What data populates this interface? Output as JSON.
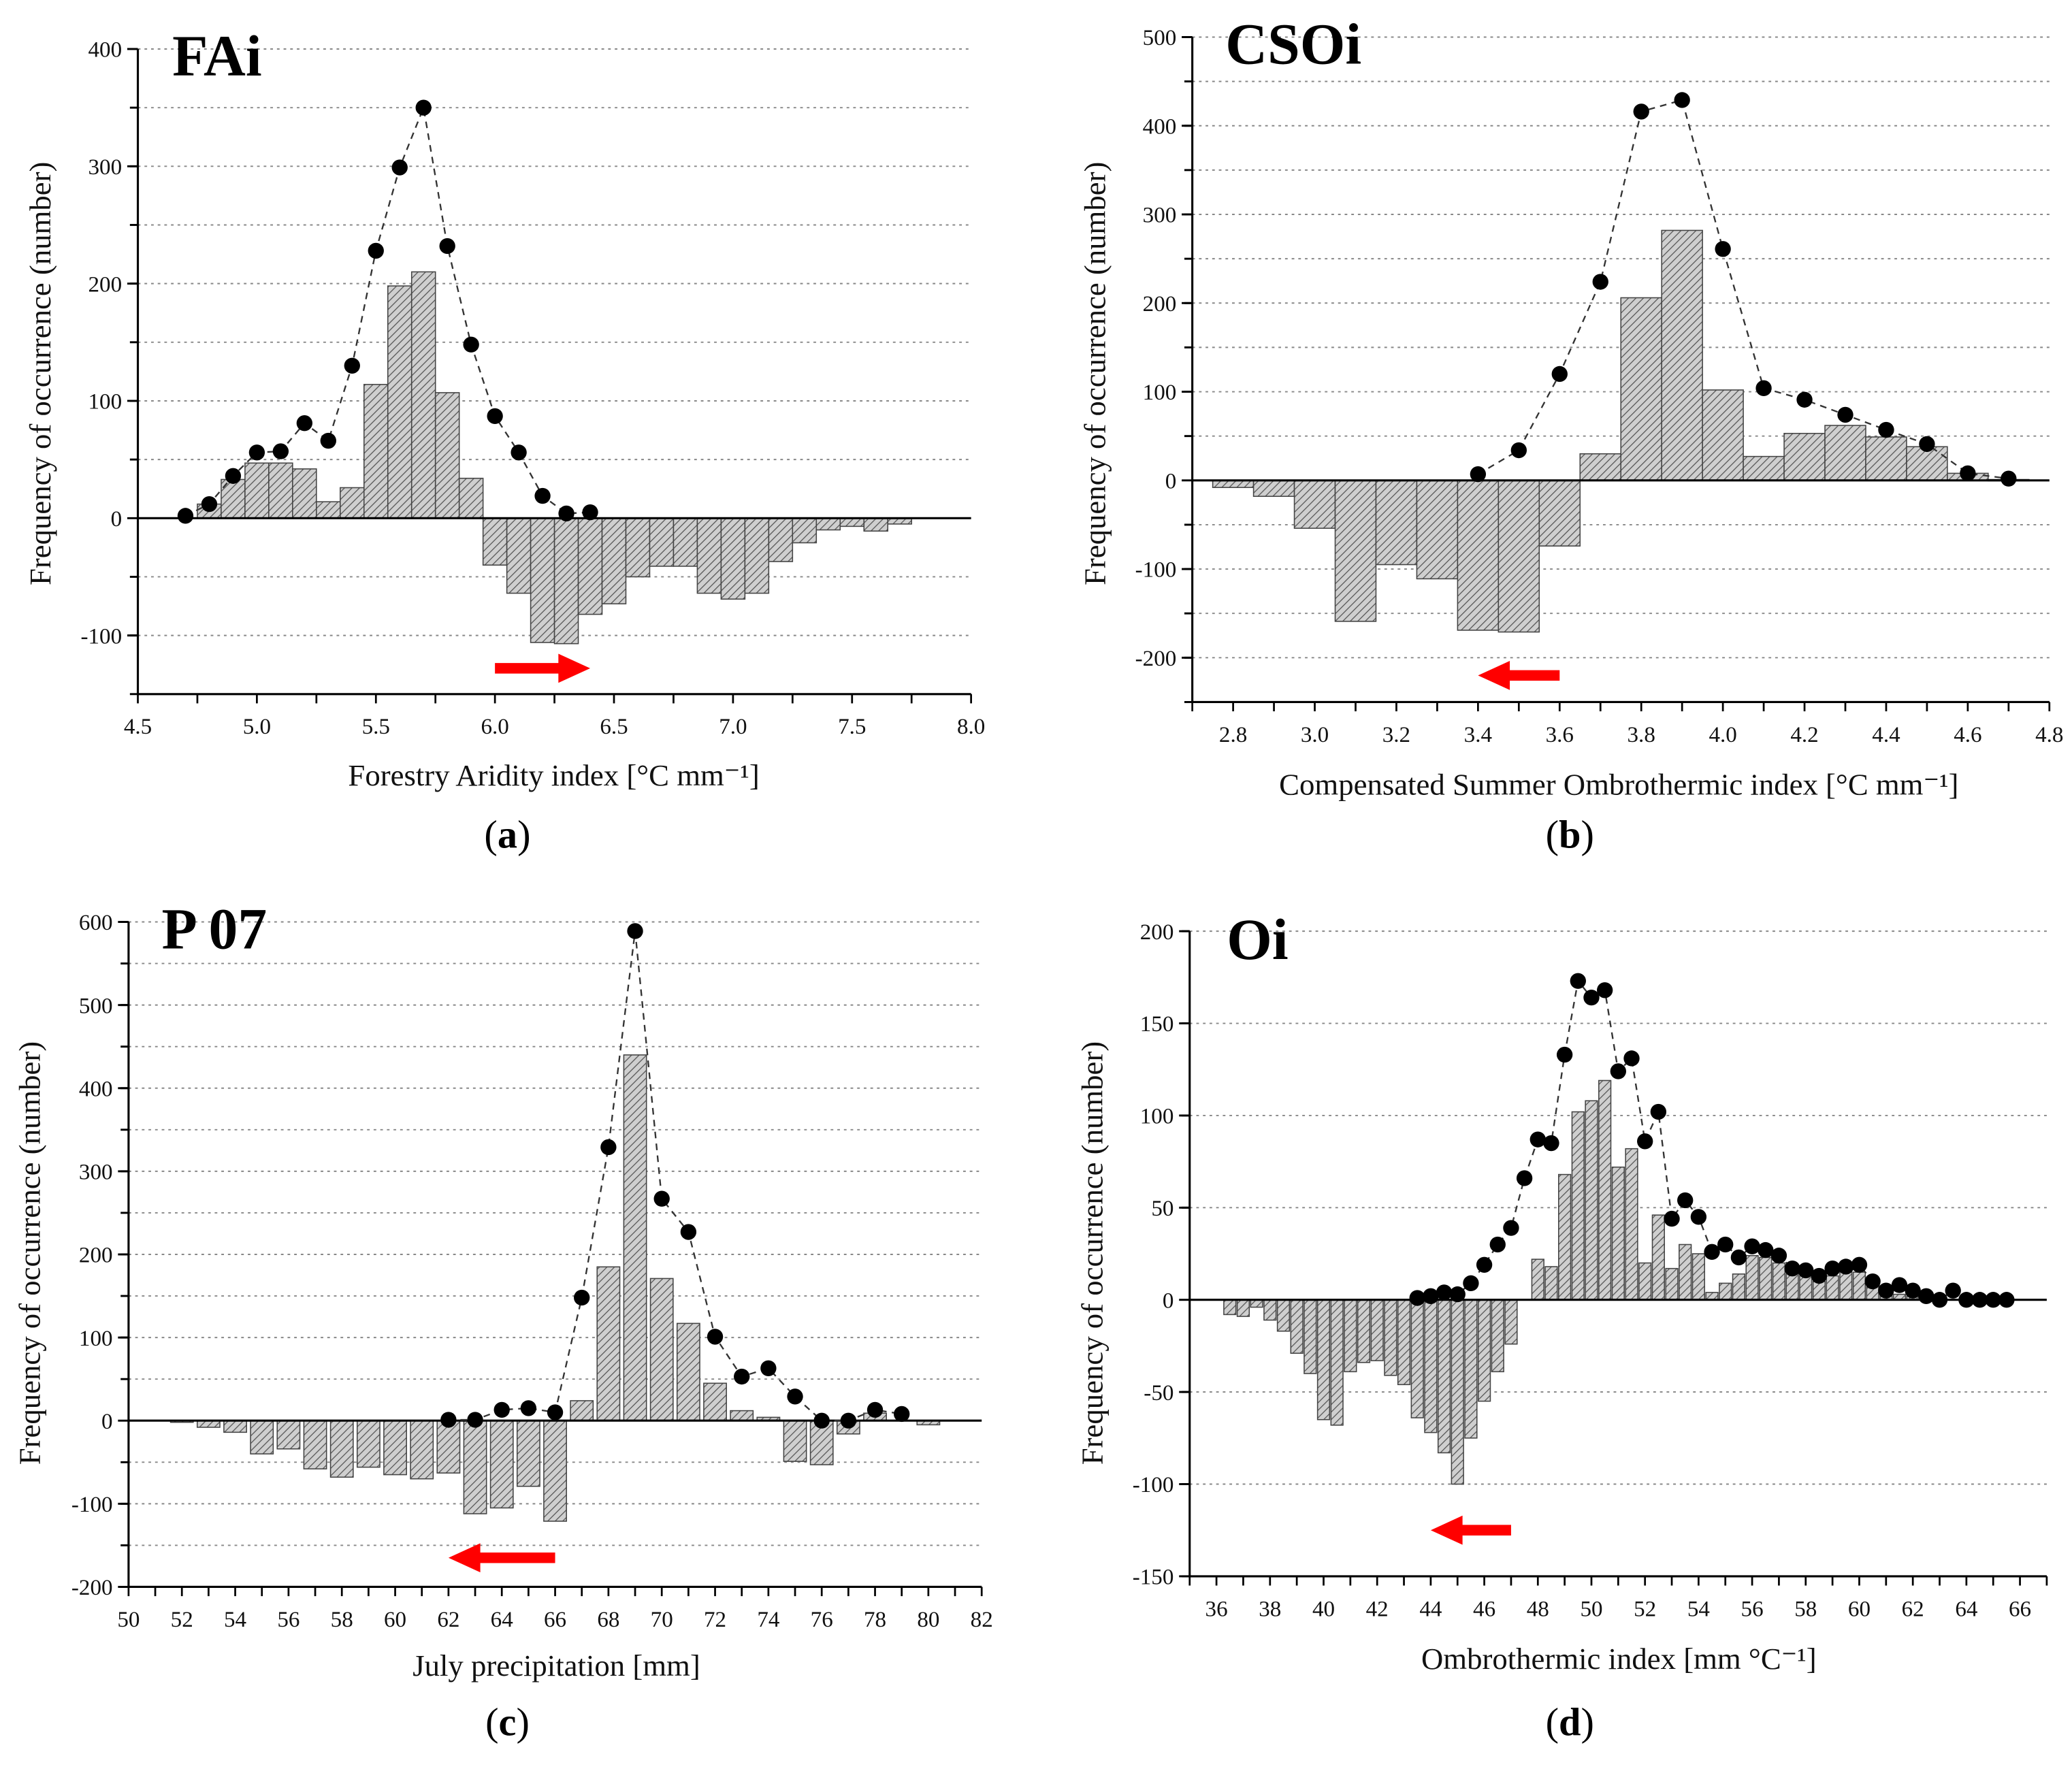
{
  "chart_data": [
    {
      "type": "bar",
      "title": "FAi",
      "panel": "a",
      "xlabel": "Forestry Aridity index [°C mm⁻¹]",
      "ylabel": "Frequency of occurrence (number)",
      "xlim": [
        4.5,
        8.0
      ],
      "ylim": [
        -150,
        400
      ],
      "xticks": [
        "4.5",
        "5.0",
        "5.5",
        "6.0",
        "6.5",
        "7.0",
        "7.5",
        "8.0"
      ],
      "yticks": [
        "-100",
        "0",
        "100",
        "200",
        "300",
        "400"
      ],
      "grid": true,
      "bar_width": 0.1,
      "bars": {
        "x": [
          4.8,
          4.9,
          5.0,
          5.1,
          5.2,
          5.3,
          5.4,
          5.5,
          5.6,
          5.7,
          5.8,
          5.9,
          6.0,
          6.1,
          6.2,
          6.3,
          6.4,
          6.5,
          6.6,
          6.7,
          6.8,
          6.9,
          7.0,
          7.1,
          7.2,
          7.3,
          7.4,
          7.5,
          7.6,
          7.7
        ],
        "values": [
          12,
          33,
          47,
          47,
          42,
          14,
          26,
          114,
          198,
          210,
          107,
          34,
          -40,
          -64,
          -106,
          -107,
          -82,
          -73,
          -50,
          -41,
          -41,
          -64,
          -69,
          -64,
          -37,
          -21,
          -10,
          -7,
          -11,
          -5
        ]
      },
      "points": {
        "x": [
          4.7,
          4.8,
          4.9,
          5.0,
          5.1,
          5.2,
          5.3,
          5.4,
          5.5,
          5.6,
          5.7,
          5.8,
          5.9,
          6.0,
          6.1,
          6.2,
          6.3,
          6.4
        ],
        "values": [
          2,
          12,
          36,
          56,
          57,
          81,
          66,
          130,
          228,
          299,
          350,
          232,
          148,
          87,
          56,
          19,
          4,
          5
        ]
      },
      "arrow": {
        "from": 6.0,
        "to": 6.4,
        "y": -128,
        "direction": "right",
        "color": "#ff0000"
      }
    },
    {
      "type": "bar",
      "title": "CSOi",
      "panel": "b",
      "xlabel": "Compensated Summer Ombrothermic index [°C mm⁻¹]",
      "ylabel": "Frequency of occurrence (number)",
      "xlim": [
        2.7,
        4.8
      ],
      "ylim": [
        -250,
        500
      ],
      "xticks": [
        "2.8",
        "3.0",
        "3.2",
        "3.4",
        "3.6",
        "3.8",
        "4.0",
        "4.2",
        "4.4",
        "4.6",
        "4.8"
      ],
      "yticks": [
        "-200",
        "-100",
        "0",
        "100",
        "200",
        "300",
        "400",
        "500"
      ],
      "grid": true,
      "bar_width": 0.1,
      "bars": {
        "x": [
          2.8,
          2.9,
          3.0,
          3.1,
          3.2,
          3.3,
          3.4,
          3.5,
          3.6,
          3.7,
          3.8,
          3.9,
          4.0,
          4.1,
          4.2,
          4.3,
          4.4,
          4.5,
          4.6,
          4.7
        ],
        "values": [
          -8,
          -18,
          -54,
          -159,
          -95,
          -111,
          -169,
          -171,
          -74,
          30,
          206,
          282,
          102,
          27,
          53,
          62,
          49,
          38,
          8,
          1
        ]
      },
      "points": {
        "x": [
          3.4,
          3.5,
          3.6,
          3.7,
          3.8,
          3.9,
          4.0,
          4.1,
          4.2,
          4.3,
          4.4,
          4.5,
          4.6,
          4.7
        ],
        "values": [
          7,
          34,
          120,
          224,
          416,
          429,
          261,
          104,
          91,
          74,
          57,
          41,
          8,
          2
        ]
      },
      "arrow": {
        "from": 3.6,
        "to": 3.4,
        "y": -220,
        "direction": "left",
        "color": "#ff0000"
      }
    },
    {
      "type": "bar",
      "title": "P 07",
      "panel": "c",
      "xlabel": "July precipitation [mm]",
      "ylabel": "Frequency of occurrence (number)",
      "xlim": [
        50,
        82
      ],
      "ylim": [
        -200,
        600
      ],
      "xticks": [
        "50",
        "52",
        "54",
        "56",
        "58",
        "60",
        "62",
        "64",
        "66",
        "68",
        "70",
        "72",
        "74",
        "76",
        "78",
        "80",
        "82"
      ],
      "yticks": [
        "-200",
        "-100",
        "0",
        "100",
        "200",
        "300",
        "400",
        "500",
        "600"
      ],
      "grid": true,
      "bar_width": 0.85,
      "bars": {
        "x": [
          52,
          53,
          54,
          55,
          56,
          57,
          58,
          59,
          60,
          61,
          62,
          63,
          64,
          65,
          66,
          67,
          68,
          69,
          70,
          71,
          72,
          73,
          74,
          75,
          76,
          77,
          78,
          79,
          80
        ],
        "values": [
          -2,
          -8,
          -14,
          -40,
          -34,
          -58,
          -68,
          -56,
          -65,
          -70,
          -63,
          -112,
          -105,
          -79,
          -121,
          24,
          185,
          440,
          171,
          117,
          45,
          12,
          4,
          -49,
          -53,
          -16,
          9,
          0,
          -5
        ]
      },
      "points": {
        "x": [
          62,
          63,
          64,
          65,
          66,
          67,
          68,
          69,
          70,
          71,
          72,
          73,
          74,
          75,
          76,
          77,
          78,
          79
        ],
        "values": [
          1,
          1,
          13,
          15,
          10,
          148,
          329,
          589,
          267,
          227,
          101,
          53,
          63,
          29,
          0,
          0,
          13,
          8
        ]
      },
      "arrow": {
        "from": 66,
        "to": 62,
        "y": -165,
        "direction": "left",
        "color": "#ff0000"
      }
    },
    {
      "type": "bar",
      "title": "Oi",
      "panel": "d",
      "xlabel": "Ombrothermic index [mm °C⁻¹]",
      "ylabel": "Frequency of occurrence (number)",
      "xlim": [
        35,
        67
      ],
      "ylim": [
        -150,
        200
      ],
      "xticks": [
        "36",
        "38",
        "40",
        "42",
        "44",
        "46",
        "48",
        "50",
        "52",
        "54",
        "56",
        "58",
        "60",
        "62",
        "64",
        "66"
      ],
      "yticks": [
        "-150",
        "-100",
        "-50",
        "0",
        "50",
        "100",
        "150",
        "200"
      ],
      "grid": true,
      "bar_width": 0.45,
      "bars": {
        "x": [
          36.5,
          37,
          37.5,
          38,
          38.5,
          39,
          39.5,
          40,
          40.5,
          41,
          41.5,
          42,
          42.5,
          43,
          43.5,
          44,
          44.5,
          45,
          45.5,
          46,
          46.5,
          47,
          48,
          48.5,
          49,
          49.5,
          50,
          50.5,
          51,
          51.5,
          52,
          52.5,
          53,
          53.5,
          54,
          54.5,
          55,
          55.5,
          56,
          56.5,
          57,
          57.5,
          58,
          58.5,
          59,
          59.5,
          60,
          60.5,
          61,
          61.5,
          62
        ],
        "values": [
          -8,
          -9,
          -4,
          -11,
          -17,
          -29,
          -40,
          -65,
          -68,
          -39,
          -34,
          -33,
          -41,
          -46,
          -64,
          -72,
          -83,
          -100,
          -75,
          -55,
          -39,
          -24,
          22,
          18,
          68,
          102,
          108,
          119,
          72,
          82,
          20,
          46,
          17,
          30,
          25,
          4,
          9,
          14,
          24,
          23,
          20,
          15,
          13,
          10,
          13,
          15,
          15,
          7,
          4,
          3,
          2
        ]
      },
      "points": {
        "x": [
          43.5,
          44,
          44.5,
          45,
          45.5,
          46,
          46.5,
          47,
          47.5,
          48,
          48.5,
          49,
          49.5,
          50,
          50.5,
          51,
          51.5,
          52,
          52.5,
          53,
          53.5,
          54,
          54.5,
          55,
          55.5,
          56,
          56.5,
          57,
          57.5,
          58,
          58.5,
          59,
          59.5,
          60,
          60.5,
          61,
          61.5,
          62,
          62.5,
          63,
          63.5,
          64,
          64.5,
          65,
          65.5
        ],
        "values": [
          1,
          2,
          4,
          3,
          9,
          19,
          30,
          39,
          66,
          87,
          85,
          133,
          173,
          164,
          168,
          124,
          131,
          86,
          102,
          44,
          54,
          45,
          26,
          30,
          23,
          29,
          27,
          24,
          17,
          16,
          13,
          17,
          18,
          19,
          10,
          5,
          8,
          5,
          2,
          0,
          5,
          0,
          0,
          0,
          0
        ]
      },
      "arrow": {
        "from": 47,
        "to": 44,
        "y": -125,
        "direction": "left",
        "color": "#ff0000"
      }
    }
  ]
}
